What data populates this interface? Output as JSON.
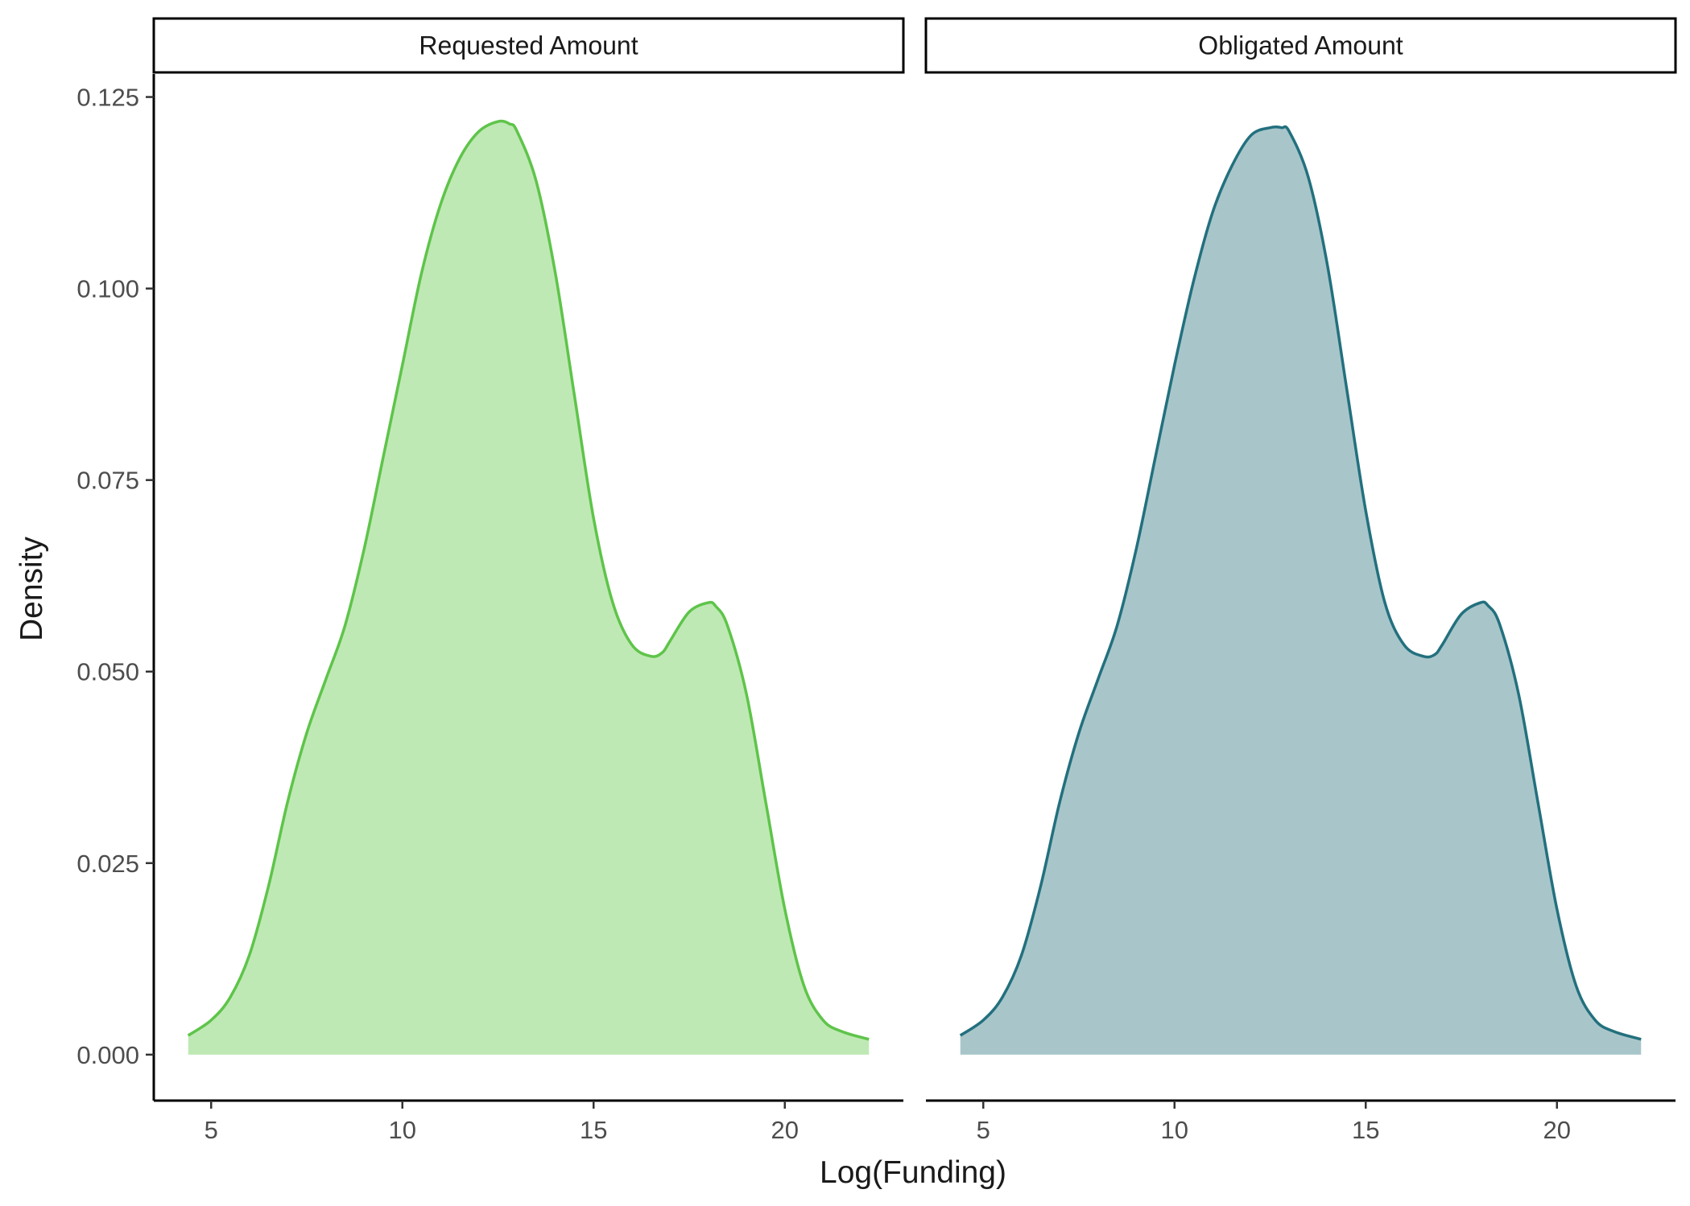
{
  "chart_data": {
    "type": "area",
    "xlabel": "Log(Funding)",
    "ylabel": "Density",
    "xlim": [
      3.5,
      23.1
    ],
    "ylim": [
      -0.006,
      0.128
    ],
    "x_ticks": [
      5,
      10,
      15,
      20
    ],
    "x_tick_labels": [
      "5",
      "10",
      "15",
      "20"
    ],
    "y_ticks": [
      0.0,
      0.025,
      0.05,
      0.075,
      0.1,
      0.125
    ],
    "y_tick_labels": [
      "0.000",
      "0.025",
      "0.050",
      "0.075",
      "0.100",
      "0.125"
    ],
    "grid": false,
    "legend": "none",
    "panels": [
      {
        "name": "Requested Amount",
        "line_color": "#5ec44a",
        "fill_color": "#bfe9b4",
        "x": [
          4.4,
          5.0,
          5.5,
          6.0,
          6.5,
          7.0,
          7.5,
          8.0,
          8.5,
          9.0,
          9.5,
          10.0,
          10.5,
          11.0,
          11.5,
          12.0,
          12.5,
          12.8,
          13.0,
          13.5,
          14.0,
          14.5,
          15.0,
          15.5,
          16.0,
          16.5,
          16.8,
          17.0,
          17.5,
          18.0,
          18.2,
          18.5,
          19.0,
          19.5,
          20.0,
          20.5,
          21.0,
          21.5,
          22.2
        ],
        "y": [
          0.0025,
          0.0045,
          0.0075,
          0.013,
          0.022,
          0.033,
          0.042,
          0.049,
          0.056,
          0.066,
          0.078,
          0.09,
          0.102,
          0.111,
          0.117,
          0.1205,
          0.1218,
          0.1215,
          0.1205,
          0.114,
          0.102,
          0.086,
          0.07,
          0.059,
          0.0535,
          0.052,
          0.0525,
          0.054,
          0.0578,
          0.059,
          0.0585,
          0.056,
          0.047,
          0.033,
          0.019,
          0.009,
          0.0045,
          0.003,
          0.002
        ]
      },
      {
        "name": "Obligated Amount",
        "line_color": "#23707e",
        "fill_color": "#a8c6ca",
        "x": [
          4.4,
          5.0,
          5.5,
          6.0,
          6.5,
          7.0,
          7.5,
          8.0,
          8.5,
          9.0,
          9.5,
          10.0,
          10.5,
          11.0,
          11.5,
          12.0,
          12.5,
          12.8,
          13.0,
          13.5,
          14.0,
          14.5,
          15.0,
          15.5,
          16.0,
          16.5,
          16.8,
          17.0,
          17.5,
          18.0,
          18.2,
          18.5,
          19.0,
          19.5,
          20.0,
          20.5,
          21.0,
          21.5,
          22.2
        ],
        "y": [
          0.0025,
          0.0045,
          0.0075,
          0.013,
          0.022,
          0.033,
          0.042,
          0.049,
          0.056,
          0.066,
          0.078,
          0.09,
          0.101,
          0.11,
          0.116,
          0.12,
          0.121,
          0.121,
          0.1205,
          0.1145,
          0.103,
          0.087,
          0.071,
          0.059,
          0.0535,
          0.052,
          0.0522,
          0.0535,
          0.0575,
          0.059,
          0.0586,
          0.0562,
          0.047,
          0.033,
          0.019,
          0.009,
          0.0045,
          0.003,
          0.002
        ]
      }
    ]
  }
}
